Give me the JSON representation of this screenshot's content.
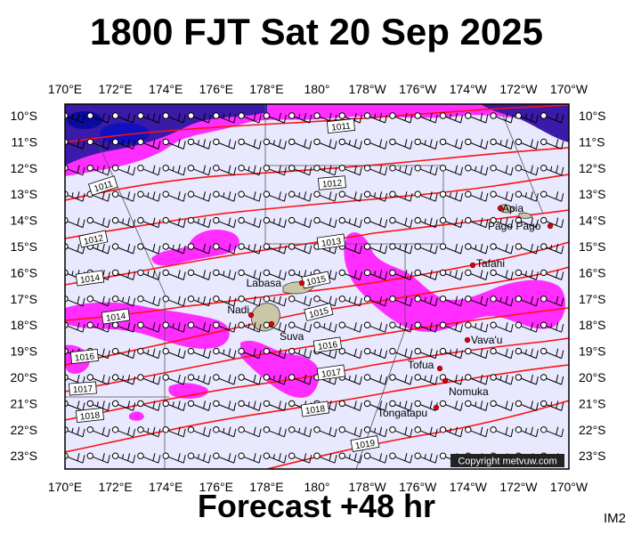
{
  "header": {
    "title": "1800 FJT Sat 20 Sep 2025"
  },
  "footer": {
    "forecast": "Forecast +48 hr",
    "product_code": "IM2"
  },
  "credit": "Copyright metvuw.com",
  "axes": {
    "lon_labels": [
      "170°E",
      "172°E",
      "174°E",
      "176°E",
      "178°E",
      "180°",
      "178°W",
      "176°W",
      "174°W",
      "172°W",
      "170°W"
    ],
    "lat_labels": [
      "10°S",
      "11°S",
      "12°S",
      "13°S",
      "14°S",
      "15°S",
      "16°S",
      "17°S",
      "18°S",
      "19°S",
      "20°S",
      "21°S",
      "22°S",
      "23°S"
    ]
  },
  "places": [
    "Labasa",
    "Nadi",
    "Suva",
    "Apia",
    "Pago Pago",
    "Tafahi",
    "Vava'u",
    "Tofua",
    "Nomuka",
    "Tongatapu"
  ],
  "isobars": [
    "1011",
    "1011",
    "1012",
    "1012",
    "1013",
    "1014",
    "1014",
    "1015",
    "1015",
    "1016",
    "1016",
    "1017",
    "1017",
    "1018",
    "1018",
    "1019"
  ],
  "colors": {
    "ocean": "#e8e8ff",
    "precip_light": "#ff2dff",
    "precip_heavy": "#1010c0",
    "isobar": "#ff1010"
  }
}
